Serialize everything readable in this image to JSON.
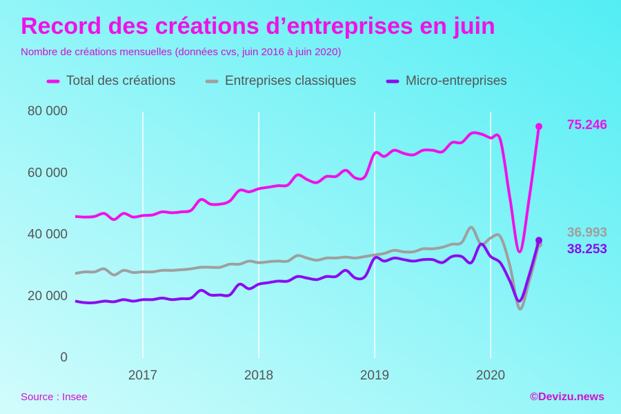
{
  "chart_data": {
    "type": "line",
    "title": "Record des créations d’entreprises en juin",
    "subtitle": "Nombre de créations mensuelles (données cvs, juin 2016 à juin 2020)",
    "source": "Source : Insee",
    "credit": "©Devizu.news",
    "categories": [
      null,
      null,
      null,
      null,
      null,
      null,
      null,
      "2017",
      null,
      null,
      null,
      null,
      null,
      null,
      null,
      null,
      null,
      null,
      null,
      "2018",
      null,
      null,
      null,
      null,
      null,
      null,
      null,
      null,
      null,
      null,
      null,
      "2019",
      null,
      null,
      null,
      null,
      null,
      null,
      null,
      null,
      null,
      null,
      null,
      "2020",
      null,
      null,
      null,
      null,
      null
    ],
    "series": [
      {
        "name": "Total des créations",
        "color": "#f011e8",
        "values": [
          46000,
          45800,
          46000,
          47000,
          45000,
          47000,
          45800,
          46300,
          46500,
          47500,
          47200,
          47500,
          48000,
          51500,
          50000,
          50000,
          51000,
          54500,
          54000,
          55000,
          55500,
          56000,
          56200,
          59500,
          58000,
          57000,
          59000,
          59000,
          61000,
          58500,
          59000,
          66500,
          65500,
          67500,
          66500,
          66000,
          67500,
          67500,
          67000,
          70000,
          70000,
          73000,
          72800,
          71500,
          71000,
          52000,
          34500,
          52000,
          75246
        ],
        "value_labels": [
          null,
          null,
          null,
          null,
          null,
          null,
          null,
          null,
          null,
          null,
          null,
          null,
          null,
          null,
          null,
          null,
          null,
          null,
          null,
          null,
          null,
          null,
          null,
          null,
          null,
          null,
          null,
          null,
          null,
          null,
          null,
          null,
          null,
          null,
          null,
          null,
          null,
          null,
          null,
          null,
          null,
          null,
          null,
          null,
          null,
          null,
          null,
          null,
          "75.246"
        ]
      },
      {
        "name": "Entreprises classiques",
        "color": "#9f9f9f",
        "values": [
          27500,
          28000,
          28000,
          29000,
          27000,
          28500,
          27800,
          28000,
          28000,
          28500,
          28500,
          28700,
          29000,
          29500,
          29500,
          29500,
          30500,
          30500,
          31500,
          31000,
          31300,
          31500,
          31500,
          33300,
          32500,
          31800,
          32500,
          32500,
          32800,
          32500,
          33000,
          33500,
          34000,
          35000,
          34500,
          34500,
          35500,
          35500,
          36000,
          37000,
          37500,
          42500,
          37000,
          39000,
          39500,
          30000,
          16000,
          25000,
          36993
        ],
        "value_labels": [
          null,
          null,
          null,
          null,
          null,
          null,
          null,
          null,
          null,
          null,
          null,
          null,
          null,
          null,
          null,
          null,
          null,
          null,
          null,
          null,
          null,
          null,
          null,
          null,
          null,
          null,
          null,
          null,
          null,
          null,
          null,
          null,
          null,
          null,
          null,
          null,
          null,
          null,
          null,
          null,
          null,
          null,
          null,
          null,
          null,
          null,
          null,
          null,
          "36.993"
        ]
      },
      {
        "name": "Micro-entreprises",
        "color": "#8a0cf0",
        "values": [
          18500,
          18000,
          18000,
          18500,
          18300,
          19000,
          18500,
          19000,
          19000,
          19500,
          19000,
          19300,
          19500,
          22000,
          20500,
          20500,
          20500,
          24000,
          22500,
          24000,
          24500,
          25000,
          25000,
          26500,
          26000,
          25500,
          26500,
          26500,
          28500,
          26000,
          26500,
          32500,
          31500,
          32500,
          32000,
          31500,
          32000,
          32000,
          31000,
          33000,
          33000,
          31000,
          37000,
          33000,
          31000,
          25000,
          18500,
          27000,
          38253
        ],
        "value_labels": [
          null,
          null,
          null,
          null,
          null,
          null,
          null,
          null,
          null,
          null,
          null,
          null,
          null,
          null,
          null,
          null,
          null,
          null,
          null,
          null,
          null,
          null,
          null,
          null,
          null,
          null,
          null,
          null,
          null,
          null,
          null,
          null,
          null,
          null,
          null,
          null,
          null,
          null,
          null,
          null,
          null,
          null,
          null,
          null,
          null,
          null,
          null,
          null,
          "38.253"
        ]
      }
    ],
    "ylim": [
      0,
      80000
    ],
    "yticks": [
      0,
      {
        "value": 20000,
        "label": "20 000"
      },
      {
        "value": 40000,
        "label": "40 000"
      },
      {
        "value": 60000,
        "label": "60 000"
      },
      {
        "value": 80000,
        "label": "80 000"
      }
    ],
    "grid": "x"
  }
}
